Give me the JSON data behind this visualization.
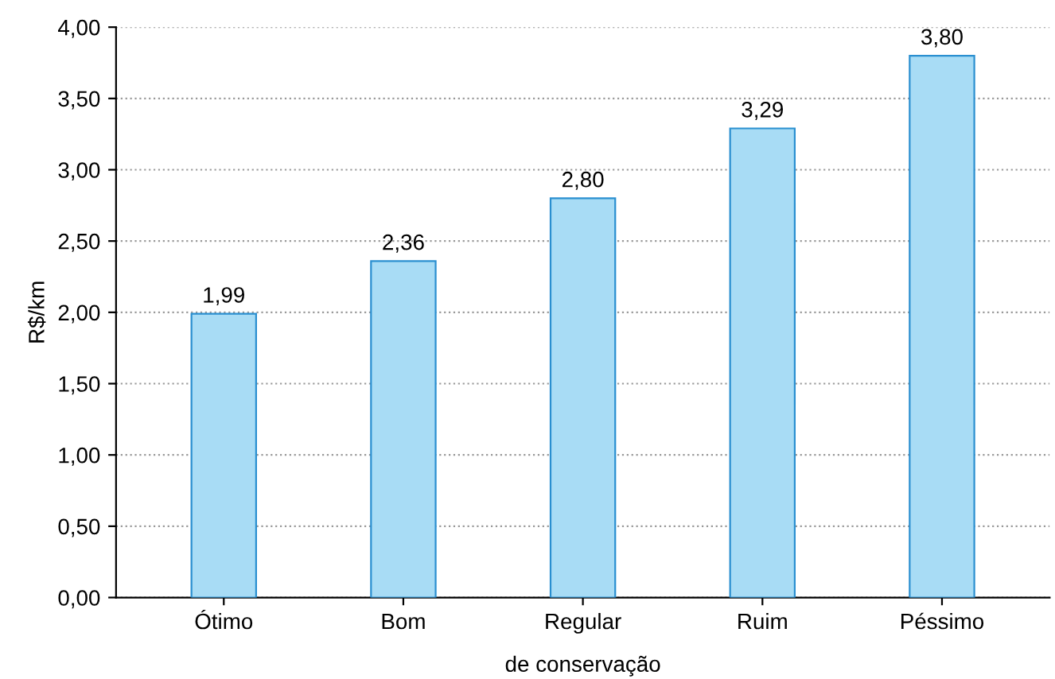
{
  "chart_data": {
    "type": "bar",
    "xlabel": "de conservação",
    "ylabel": "R$/km",
    "categories": [
      "Ótimo",
      "Bom",
      "Regular",
      "Ruim",
      "Péssimo"
    ],
    "values": [
      1.99,
      2.36,
      2.8,
      3.29,
      3.8
    ],
    "value_labels": [
      "1,99",
      "2,36",
      "2,80",
      "3,29",
      "3,80"
    ],
    "color": "#a8dcf5",
    "ylim": [
      0,
      4
    ],
    "yticks": [
      {
        "value": 0,
        "label": "0,00"
      },
      {
        "value": 0.5,
        "label": "0,50"
      },
      {
        "value": 1,
        "label": "1,00"
      },
      {
        "value": 1.5,
        "label": "1,50"
      },
      {
        "value": 2,
        "label": "2,00"
      },
      {
        "value": 2.5,
        "label": "2,50"
      },
      {
        "value": 3,
        "label": "3,00"
      },
      {
        "value": 3.5,
        "label": "3,50"
      },
      {
        "value": 4,
        "label": "4,00"
      }
    ],
    "grid": "y"
  }
}
